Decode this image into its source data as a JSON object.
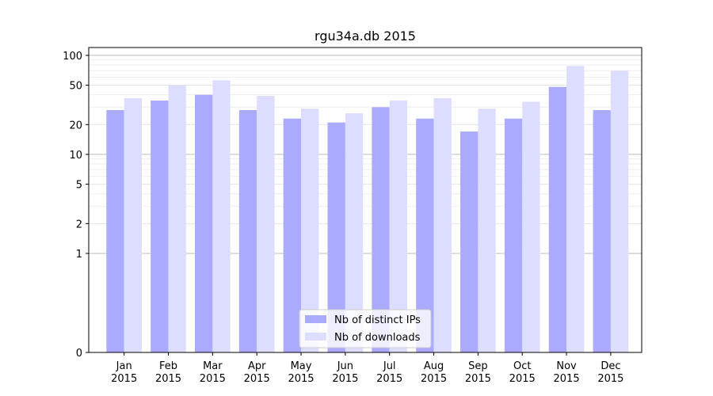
{
  "chart_data": {
    "type": "bar",
    "title": "rgu34a.db 2015",
    "xlabel": "",
    "ylabel": "",
    "yscale": "symlog",
    "ylim": [
      0,
      120
    ],
    "yticks": [
      0,
      1,
      2,
      5,
      10,
      20,
      50,
      100
    ],
    "ytick_labels": [
      "0",
      "1",
      "2",
      "5",
      "10",
      "20",
      "50",
      "100"
    ],
    "categories": [
      "Jan\n2015",
      "Feb\n2015",
      "Mar\n2015",
      "Apr\n2015",
      "May\n2015",
      "Jun\n2015",
      "Jul\n2015",
      "Aug\n2015",
      "Sep\n2015",
      "Oct\n2015",
      "Nov\n2015",
      "Dec\n2015"
    ],
    "category_lines": [
      [
        "Jan",
        "2015"
      ],
      [
        "Feb",
        "2015"
      ],
      [
        "Mar",
        "2015"
      ],
      [
        "Apr",
        "2015"
      ],
      [
        "May",
        "2015"
      ],
      [
        "Jun",
        "2015"
      ],
      [
        "Jul",
        "2015"
      ],
      [
        "Aug",
        "2015"
      ],
      [
        "Sep",
        "2015"
      ],
      [
        "Oct",
        "2015"
      ],
      [
        "Nov",
        "2015"
      ],
      [
        "Dec",
        "2015"
      ]
    ],
    "series": [
      {
        "name": "Nb of distinct IPs",
        "color": "#aaaaff",
        "values": [
          28,
          35,
          40,
          28,
          23,
          21,
          30,
          23,
          17,
          23,
          48,
          28
        ]
      },
      {
        "name": "Nb of downloads",
        "color": "#ddddff",
        "values": [
          37,
          50,
          56,
          39,
          29,
          26,
          35,
          37,
          29,
          34,
          78,
          70
        ]
      }
    ],
    "grid": true,
    "legend_position": "bottom-center"
  }
}
